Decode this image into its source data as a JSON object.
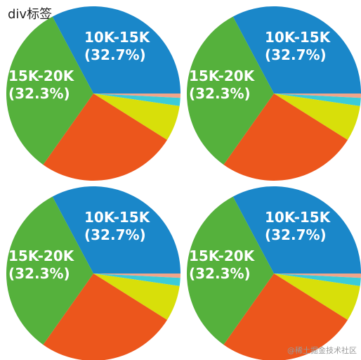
{
  "page": {
    "title": "div标签"
  },
  "watermark": "@稀土掘金技术社区",
  "chart_data": [
    {
      "type": "pie",
      "slices": [
        {
          "label": "10K-15K",
          "value": 32.7,
          "text": "(32.7%)",
          "color": "#1a87c9"
        },
        {
          "label": "",
          "value": 0.8,
          "color": "#f2a58a"
        },
        {
          "label": "",
          "value": 1.5,
          "color": "#3ccbd9"
        },
        {
          "label": "",
          "value": 6.6,
          "color": "#d8df0a"
        },
        {
          "label": "",
          "value": 25.8,
          "color": "#ec561c"
        },
        {
          "label": "15K-20K",
          "value": 32.3,
          "text": "(32.3%)",
          "color": "#55b13c"
        }
      ]
    },
    {
      "type": "pie",
      "slices": [
        {
          "label": "10K-15K",
          "value": 32.7,
          "text": "(32.7%)",
          "color": "#1a87c9"
        },
        {
          "label": "",
          "value": 0.8,
          "color": "#f2a58a"
        },
        {
          "label": "",
          "value": 1.5,
          "color": "#3ccbd9"
        },
        {
          "label": "",
          "value": 6.6,
          "color": "#d8df0a"
        },
        {
          "label": "",
          "value": 25.8,
          "color": "#ec561c"
        },
        {
          "label": "15K-20K",
          "value": 32.3,
          "text": "(32.3%)",
          "color": "#55b13c"
        }
      ]
    },
    {
      "type": "pie",
      "slices": [
        {
          "label": "10K-15K",
          "value": 32.7,
          "text": "(32.7%)",
          "color": "#1a87c9"
        },
        {
          "label": "",
          "value": 0.8,
          "color": "#f2a58a"
        },
        {
          "label": "",
          "value": 1.5,
          "color": "#3ccbd9"
        },
        {
          "label": "",
          "value": 6.6,
          "color": "#d8df0a"
        },
        {
          "label": "",
          "value": 25.8,
          "color": "#ec561c"
        },
        {
          "label": "15K-20K",
          "value": 32.3,
          "text": "(32.3%)",
          "color": "#55b13c"
        }
      ]
    },
    {
      "type": "pie",
      "slices": [
        {
          "label": "10K-15K",
          "value": 32.7,
          "text": "(32.7%)",
          "color": "#1a87c9"
        },
        {
          "label": "",
          "value": 0.8,
          "color": "#f2a58a"
        },
        {
          "label": "",
          "value": 1.5,
          "color": "#3ccbd9"
        },
        {
          "label": "",
          "value": 6.6,
          "color": "#d8df0a"
        },
        {
          "label": "",
          "value": 25.8,
          "color": "#ec561c"
        },
        {
          "label": "15K-20K",
          "value": 32.3,
          "text": "(32.3%)",
          "color": "#55b13c"
        }
      ]
    }
  ]
}
